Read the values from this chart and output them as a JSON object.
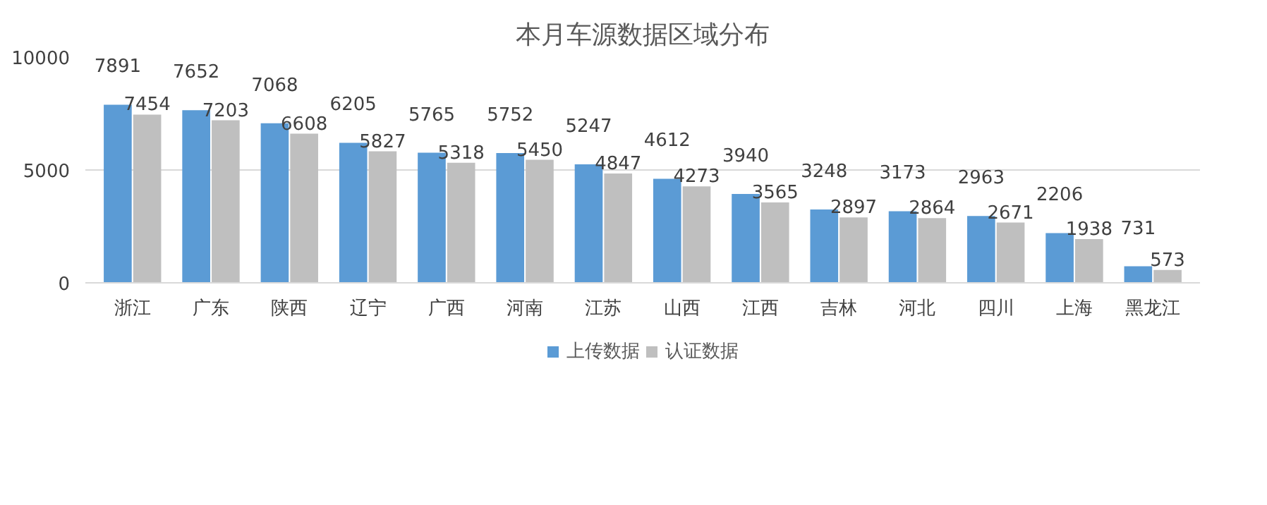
{
  "chart_data": {
    "type": "bar",
    "title": "本月车源数据区域分布",
    "categories": [
      "浙江",
      "广东",
      "陕西",
      "辽宁",
      "广西",
      "河南",
      "江苏",
      "山西",
      "江西",
      "吉林",
      "河北",
      "四川",
      "上海",
      "黑龙江"
    ],
    "series": [
      {
        "name": "上传数据",
        "color": "#5b9bd5",
        "values": [
          7891,
          7652,
          7068,
          6205,
          5765,
          5752,
          5247,
          4612,
          3940,
          3248,
          3173,
          2963,
          2206,
          731
        ]
      },
      {
        "name": "认证数据",
        "color": "#bfbfbf",
        "values": [
          7454,
          7203,
          6608,
          5827,
          5318,
          5450,
          4847,
          4273,
          3565,
          2897,
          2864,
          2671,
          1938,
          573
        ]
      }
    ],
    "ylim": [
      0,
      10000
    ],
    "yticks": [
      0,
      5000,
      10000
    ],
    "grid": "y",
    "legend": "bottom",
    "data_labels": true
  }
}
